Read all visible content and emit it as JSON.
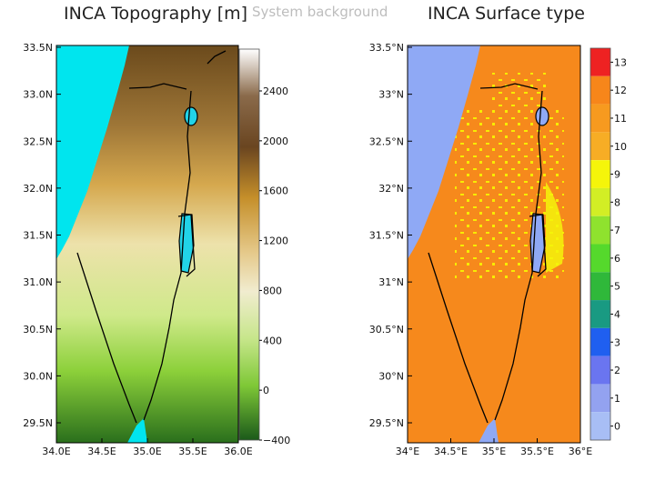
{
  "left_map": {
    "title": "INCA Topography [m]",
    "lat_ticks": [
      "33.5N",
      "33.0N",
      "32.5N",
      "32.0N",
      "31.5N",
      "31.0N",
      "30.5N",
      "30.0N",
      "29.5N"
    ],
    "lon_ticks": [
      "34.0E",
      "34.5E",
      "35.0E",
      "35.5E",
      "36.0E"
    ],
    "colorbar_ticks": [
      "2400",
      "2000",
      "1600",
      "1200",
      "800",
      "400",
      "0",
      "−400"
    ]
  },
  "overlay_label": "System background",
  "right_map": {
    "title": "INCA Surface type",
    "lat_ticks": [
      "33.5°N",
      "33°N",
      "32.5°N",
      "32°N",
      "31.5°N",
      "31°N",
      "30.5°N",
      "30°N",
      "29.5°N"
    ],
    "lon_ticks": [
      "34°E",
      "34.5°E",
      "35°E",
      "35.5°E",
      "36°E"
    ],
    "colorbar_ticks": [
      "13",
      "12",
      "11",
      "10",
      "9",
      "8",
      "7",
      "6",
      "5",
      "4",
      "3",
      "2",
      "1",
      "0"
    ],
    "colorbar_colors": [
      "#ee2222",
      "#f7861a",
      "#f79a1f",
      "#f7ad25",
      "#f5f50a",
      "#d2ee25",
      "#8fe22e",
      "#55d92c",
      "#2fb83a",
      "#199a82",
      "#1f5ff0",
      "#6a75f0",
      "#93a2f0",
      "#a8bef5"
    ]
  },
  "colors": {
    "sea": "#00e5ee",
    "sea_right": "#8fa9f5",
    "land_right": "#f6891c",
    "border": "#000000"
  }
}
